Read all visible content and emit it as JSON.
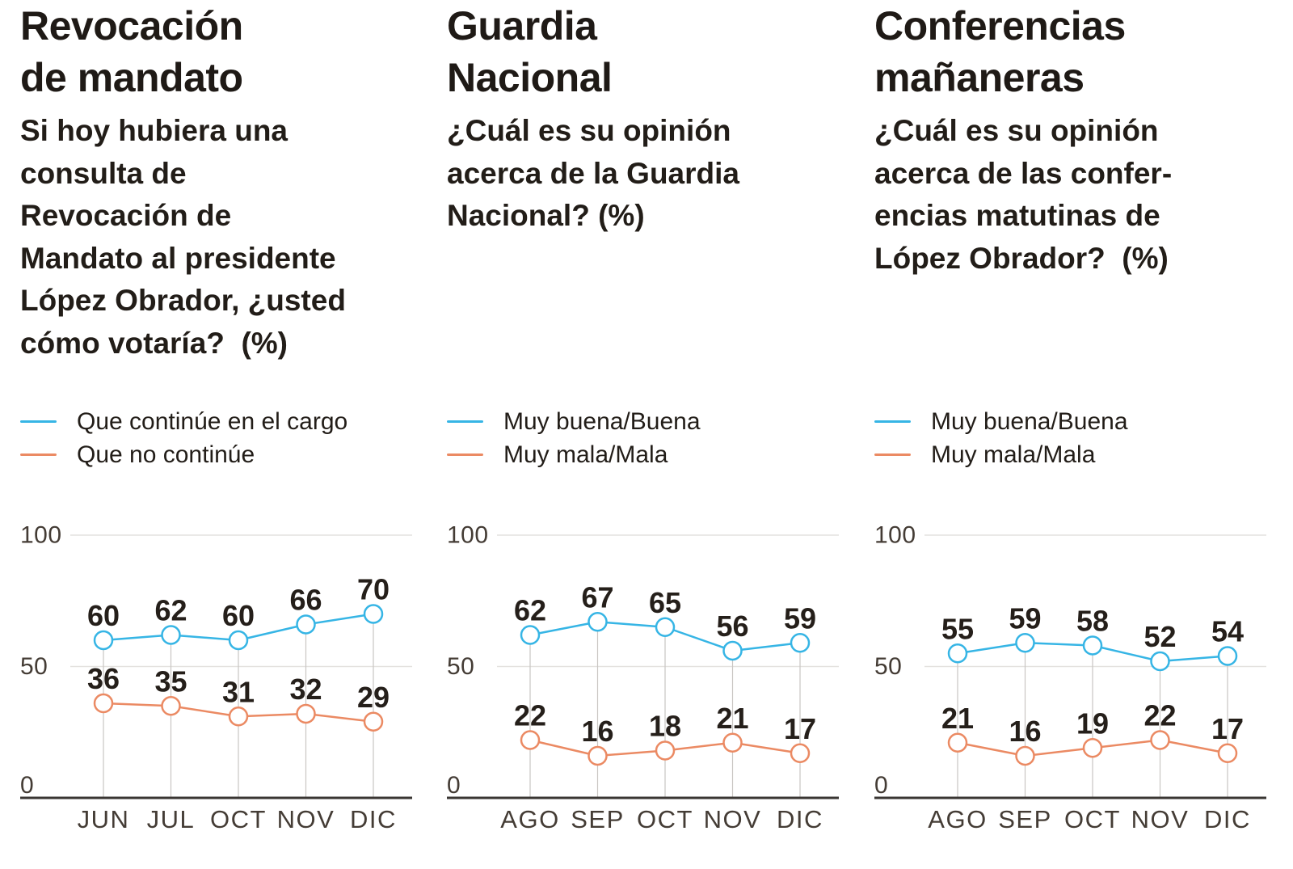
{
  "page": {
    "background": "#ffffff"
  },
  "colors": {
    "blue": "#36b5e5",
    "orange": "#eb8a63",
    "grid": "#e4e2df",
    "dropline": "#c9c6c3",
    "axis": "#3a3633",
    "axis_label": "#443c35",
    "data_label": "#251f1a",
    "text": "#221d18"
  },
  "chart_data": [
    {
      "type": "line",
      "title": "Revocación\nde mandato",
      "subtitle": "Si hoy hubiera una\nconsulta de\nRevocación de\nMandato al presidente\nLópez Obrador, ¿usted\ncómo votaría?  (%)",
      "categories": [
        "JUN",
        "JUL",
        "OCT",
        "NOV",
        "DIC"
      ],
      "series": [
        {
          "name": "Que continúe en el cargo",
          "color": "#36b5e5",
          "values": [
            60,
            62,
            60,
            66,
            70
          ]
        },
        {
          "name": "Que no continúe",
          "color": "#eb8a63",
          "values": [
            36,
            35,
            31,
            32,
            29
          ]
        }
      ],
      "ylim": [
        0,
        100
      ],
      "yticks": [
        0,
        50,
        100
      ],
      "grid": "horizontal",
      "legend_position": "top-left",
      "point_labels": true
    },
    {
      "type": "line",
      "title": "Guardia\nNacional",
      "subtitle": "¿Cuál es su opinión\nacerca de la Guardia\nNacional? (%)",
      "categories": [
        "AGO",
        "SEP",
        "OCT",
        "NOV",
        "DIC"
      ],
      "series": [
        {
          "name": "Muy buena/Buena",
          "color": "#36b5e5",
          "values": [
            62,
            67,
            65,
            56,
            59
          ]
        },
        {
          "name": "Muy mala/Mala",
          "color": "#eb8a63",
          "values": [
            22,
            16,
            18,
            21,
            17
          ]
        }
      ],
      "ylim": [
        0,
        100
      ],
      "yticks": [
        0,
        50,
        100
      ],
      "grid": "horizontal",
      "legend_position": "top-left",
      "point_labels": true
    },
    {
      "type": "line",
      "title": "Conferencias\nmañaneras",
      "subtitle": "¿Cuál es su opinión\nacerca de las confer-\nencias matutinas de\nLópez Obrador?  (%)",
      "categories": [
        "AGO",
        "SEP",
        "OCT",
        "NOV",
        "DIC"
      ],
      "series": [
        {
          "name": "Muy buena/Buena",
          "color": "#36b5e5",
          "values": [
            55,
            59,
            58,
            52,
            54
          ]
        },
        {
          "name": "Muy mala/Mala",
          "color": "#eb8a63",
          "values": [
            21,
            16,
            19,
            22,
            17
          ]
        }
      ],
      "ylim": [
        0,
        100
      ],
      "yticks": [
        0,
        50,
        100
      ],
      "grid": "horizontal",
      "legend_position": "top-left",
      "point_labels": true
    }
  ]
}
